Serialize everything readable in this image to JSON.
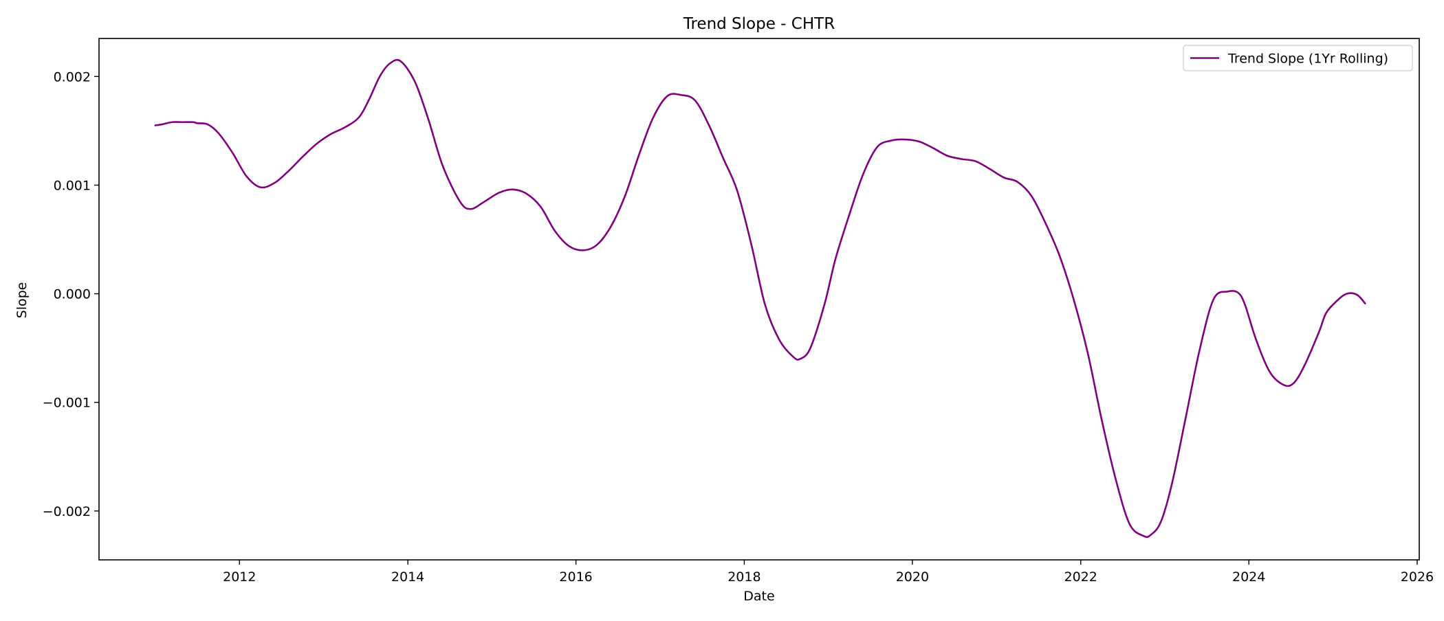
{
  "chart_data": {
    "type": "line",
    "title": "Trend Slope - CHTR",
    "xlabel": "Date",
    "ylabel": "Slope",
    "x_axis_type": "date",
    "xlim": [
      "2010-05-01",
      "2026-01-10"
    ],
    "ylim": [
      -0.00245,
      0.00235
    ],
    "x_ticks": [
      {
        "value": "2012-01-01",
        "label": "2012"
      },
      {
        "value": "2014-01-01",
        "label": "2014"
      },
      {
        "value": "2016-01-01",
        "label": "2016"
      },
      {
        "value": "2018-01-01",
        "label": "2018"
      },
      {
        "value": "2020-01-01",
        "label": "2020"
      },
      {
        "value": "2022-01-01",
        "label": "2022"
      },
      {
        "value": "2024-01-01",
        "label": "2024"
      },
      {
        "value": "2026-01-01",
        "label": "2026"
      }
    ],
    "y_ticks": [
      {
        "value": 0.002,
        "label": "0.002"
      },
      {
        "value": 0.001,
        "label": "0.001"
      },
      {
        "value": 0.0,
        "label": "0.000"
      },
      {
        "value": -0.001,
        "label": "−0.001"
      },
      {
        "value": -0.002,
        "label": "−0.002"
      }
    ],
    "grid": false,
    "legend_position": "top-right",
    "series": [
      {
        "name": "Trend Slope (1Yr Rolling)",
        "color": "#800080",
        "x": [
          "2010-12-31",
          "2011-02-01",
          "2011-03-15",
          "2011-05-01",
          "2011-06-15",
          "2011-07-01",
          "2011-08-15",
          "2011-10-01",
          "2011-12-01",
          "2012-02-01",
          "2012-04-01",
          "2012-06-01",
          "2012-08-01",
          "2012-10-01",
          "2012-12-01",
          "2013-02-01",
          "2013-04-01",
          "2013-06-01",
          "2013-07-15",
          "2013-09-01",
          "2013-10-15",
          "2013-12-01",
          "2014-02-01",
          "2014-04-01",
          "2014-06-01",
          "2014-08-15",
          "2014-10-01",
          "2014-12-01",
          "2015-02-01",
          "2015-04-01",
          "2015-06-01",
          "2015-08-01",
          "2015-10-01",
          "2015-12-01",
          "2016-02-01",
          "2016-04-01",
          "2016-06-01",
          "2016-08-01",
          "2016-10-01",
          "2016-12-01",
          "2017-02-01",
          "2017-04-01",
          "2017-06-01",
          "2017-08-01",
          "2017-10-01",
          "2017-12-01",
          "2018-02-01",
          "2018-04-01",
          "2018-06-01",
          "2018-08-01",
          "2018-09-01",
          "2018-10-15",
          "2018-12-15",
          "2019-02-01",
          "2019-04-01",
          "2019-06-01",
          "2019-08-01",
          "2019-10-01",
          "2019-12-01",
          "2020-02-01",
          "2020-04-01",
          "2020-06-01",
          "2020-08-01",
          "2020-10-01",
          "2020-12-01",
          "2021-02-01",
          "2021-04-01",
          "2021-06-01",
          "2021-08-01",
          "2021-10-01",
          "2021-12-01",
          "2022-02-01",
          "2022-04-01",
          "2022-06-01",
          "2022-08-01",
          "2022-10-01",
          "2022-11-01",
          "2022-12-15",
          "2023-02-01",
          "2023-04-01",
          "2023-06-01",
          "2023-08-01",
          "2023-10-01",
          "2023-11-15",
          "2023-12-15",
          "2024-02-01",
          "2024-04-01",
          "2024-06-01",
          "2024-07-15",
          "2024-09-01",
          "2024-11-01",
          "2024-12-01",
          "2025-01-15",
          "2025-03-01",
          "2025-04-15",
          "2025-05-20"
        ],
        "y": [
          0.00155,
          0.00156,
          0.00158,
          0.00158,
          0.00158,
          0.00157,
          0.00156,
          0.00148,
          0.0013,
          0.00108,
          0.00098,
          0.00102,
          0.00113,
          0.00126,
          0.00138,
          0.00147,
          0.00153,
          0.00162,
          0.00178,
          0.002,
          0.00212,
          0.00214,
          0.00195,
          0.0016,
          0.00118,
          0.00085,
          0.00078,
          0.00085,
          0.00093,
          0.00096,
          0.00092,
          0.0008,
          0.00058,
          0.00044,
          0.0004,
          0.00045,
          0.00062,
          0.0009,
          0.00128,
          0.00162,
          0.00182,
          0.00183,
          0.00178,
          0.00155,
          0.00125,
          0.00095,
          0.00045,
          -0.0001,
          -0.00042,
          -0.00058,
          -0.0006,
          -0.0005,
          -0.0001,
          0.00032,
          0.00072,
          0.0011,
          0.00135,
          0.00141,
          0.00142,
          0.0014,
          0.00134,
          0.00127,
          0.00124,
          0.00122,
          0.00115,
          0.00107,
          0.00103,
          0.0009,
          0.00065,
          0.00035,
          -5e-05,
          -0.00055,
          -0.00115,
          -0.0017,
          -0.00212,
          -0.00223,
          -0.00222,
          -0.0021,
          -0.00175,
          -0.00115,
          -0.00052,
          -5e-05,
          2e-05,
          1e-05,
          -0.0001,
          -0.00042,
          -0.00072,
          -0.00084,
          -0.00082,
          -0.00065,
          -0.00035,
          -0.00018,
          -7e-05,
          0.0,
          -1e-05,
          -9e-05
        ]
      }
    ]
  }
}
